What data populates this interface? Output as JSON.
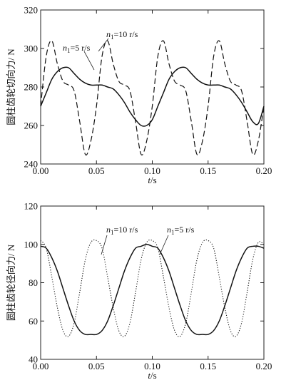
{
  "chart_data": [
    {
      "type": "line",
      "xlabel": "t/s",
      "ylabel": "圆柱齿轮切向力/ N",
      "xlim": [
        0.0,
        0.2
      ],
      "ylim": [
        240,
        320
      ],
      "xticks": [
        "0.00",
        "0.05",
        "0.10",
        "0.15",
        "0.20"
      ],
      "yticks": [
        "240",
        "260",
        "280",
        "300",
        "320"
      ],
      "grid": false,
      "annotations": [
        {
          "var": "n",
          "sub": "1",
          "rest": "=5 r/s",
          "series": "n1=5 r/s"
        },
        {
          "var": "n",
          "sub": "1",
          "rest": "=10 r/s",
          "series": "n1=10 r/s"
        }
      ],
      "series": [
        {
          "name": "n1=5 r/s",
          "style": "solid",
          "x": [
            0.0,
            0.005,
            0.01,
            0.015,
            0.02,
            0.025,
            0.03,
            0.035,
            0.04,
            0.045,
            0.05,
            0.055,
            0.06,
            0.065,
            0.07,
            0.075,
            0.08,
            0.085,
            0.09,
            0.095,
            0.1,
            0.105,
            0.11,
            0.115,
            0.12,
            0.125,
            0.13,
            0.135,
            0.14,
            0.145,
            0.15,
            0.155,
            0.16,
            0.165,
            0.17,
            0.175,
            0.18,
            0.185,
            0.19,
            0.195,
            0.2
          ],
          "y": [
            270,
            277,
            284,
            288,
            290,
            290,
            287,
            284,
            282,
            281,
            281,
            281,
            280,
            279,
            276,
            272,
            267,
            263,
            260,
            260,
            263,
            270,
            277,
            284,
            288,
            290,
            290,
            287,
            284,
            282,
            281,
            281,
            281,
            280,
            279,
            276,
            272,
            267,
            262,
            261,
            270
          ]
        },
        {
          "name": "n1=10 r/s",
          "style": "dashed",
          "x": [
            0.0,
            0.005,
            0.01,
            0.015,
            0.02,
            0.025,
            0.03,
            0.035,
            0.04,
            0.045,
            0.05,
            0.055,
            0.06,
            0.065,
            0.07,
            0.075,
            0.08,
            0.085,
            0.09,
            0.095,
            0.1,
            0.105,
            0.11,
            0.115,
            0.12,
            0.125,
            0.13,
            0.135,
            0.14,
            0.145,
            0.15,
            0.155,
            0.16,
            0.165,
            0.17,
            0.175,
            0.18,
            0.185,
            0.19,
            0.195,
            0.2
          ],
          "y": [
            270,
            296,
            304,
            292,
            283,
            281,
            278,
            262,
            245,
            252,
            270,
            296,
            304,
            292,
            283,
            281,
            278,
            262,
            245,
            252,
            270,
            296,
            304,
            292,
            283,
            281,
            278,
            262,
            245,
            252,
            270,
            296,
            304,
            292,
            283,
            281,
            278,
            262,
            245,
            252,
            270
          ]
        }
      ]
    },
    {
      "type": "line",
      "xlabel": "t/s",
      "ylabel": "圆柱齿轮径向力/ N",
      "xlim": [
        0.0,
        0.2
      ],
      "ylim": [
        40,
        120
      ],
      "xticks": [
        "0.00",
        "0.05",
        "0.10",
        "0.15",
        "0.20"
      ],
      "yticks": [
        "40",
        "60",
        "80",
        "100",
        "120"
      ],
      "grid": false,
      "annotations": [
        {
          "var": "n",
          "sub": "1",
          "rest": "=10 r/s",
          "series": "n1=10 r/s"
        },
        {
          "var": "n",
          "sub": "1",
          "rest": "=5 r/s",
          "series": "n1=5 r/s"
        }
      ],
      "series": [
        {
          "name": "n1=5 r/s",
          "style": "solid",
          "x": [
            0.0,
            0.005,
            0.01,
            0.015,
            0.02,
            0.025,
            0.03,
            0.035,
            0.04,
            0.045,
            0.05,
            0.055,
            0.06,
            0.065,
            0.07,
            0.075,
            0.08,
            0.085,
            0.09,
            0.095,
            0.1,
            0.105,
            0.11,
            0.115,
            0.12,
            0.125,
            0.13,
            0.135,
            0.14,
            0.145,
            0.15,
            0.155,
            0.16,
            0.165,
            0.17,
            0.175,
            0.18,
            0.185,
            0.19,
            0.195,
            0.2
          ],
          "y": [
            99,
            98,
            93,
            86,
            77,
            68,
            60,
            55,
            53,
            53,
            53,
            55,
            60,
            68,
            77,
            86,
            93,
            98,
            99,
            100,
            99,
            98,
            93,
            86,
            77,
            68,
            60,
            55,
            53,
            53,
            53,
            55,
            60,
            68,
            77,
            86,
            93,
            98,
            99,
            99,
            98
          ]
        },
        {
          "name": "n1=10 r/s",
          "style": "dotted",
          "x": [
            0.0,
            0.005,
            0.01,
            0.015,
            0.02,
            0.025,
            0.03,
            0.035,
            0.04,
            0.045,
            0.05,
            0.055,
            0.06,
            0.065,
            0.07,
            0.075,
            0.08,
            0.085,
            0.09,
            0.095,
            0.1,
            0.105,
            0.11,
            0.115,
            0.12,
            0.125,
            0.13,
            0.135,
            0.14,
            0.145,
            0.15,
            0.155,
            0.16,
            0.165,
            0.17,
            0.175,
            0.18,
            0.185,
            0.19,
            0.195,
            0.2
          ],
          "y": [
            102,
            98,
            83,
            67,
            55,
            52,
            59,
            75,
            92,
            101,
            102,
            98,
            83,
            67,
            55,
            52,
            59,
            75,
            92,
            101,
            102,
            98,
            83,
            67,
            55,
            52,
            59,
            75,
            92,
            101,
            102,
            98,
            83,
            67,
            55,
            52,
            59,
            75,
            92,
            101,
            100
          ]
        }
      ]
    }
  ]
}
